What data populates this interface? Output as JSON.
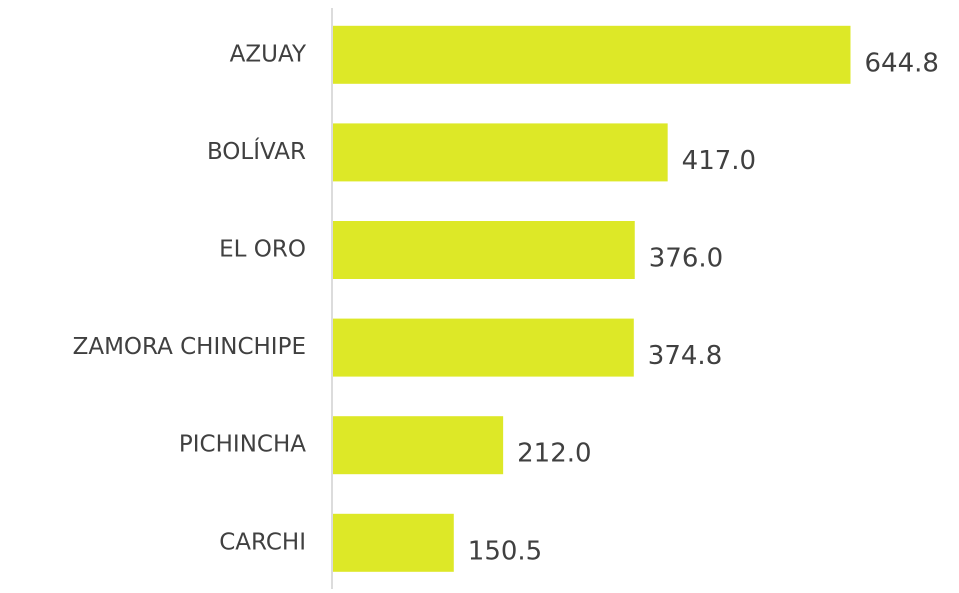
{
  "chart_data": {
    "type": "bar",
    "orientation": "horizontal",
    "categories": [
      "AZUAY",
      "BOLÍVAR",
      "EL ORO",
      "ZAMORA CHINCHIPE",
      "PICHINCHA",
      "CARCHI"
    ],
    "values": [
      644.8,
      417.0,
      376.0,
      374.8,
      212.0,
      150.5
    ],
    "value_labels": [
      "644.8",
      "417.0",
      "376.0",
      "374.8",
      "212.0",
      "150.5"
    ],
    "color": "#dde827",
    "xlim": [
      0,
      780
    ]
  }
}
